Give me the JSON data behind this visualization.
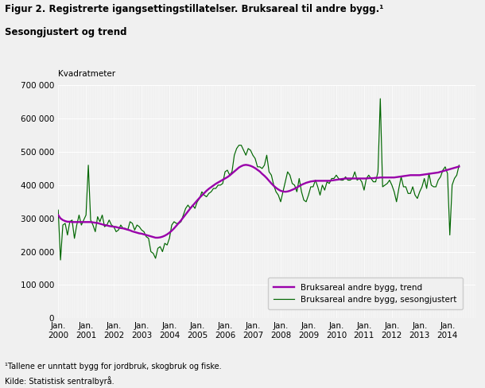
{
  "title_line1": "Figur 2. Registrerte igangsettingstillatelser. Bruksareal til andre bygg.¹",
  "title_line2": "Sesongjustert og trend",
  "ylabel": "Kvadratmeter",
  "footnote1": "¹Tallene er unntatt bygg for jordbruk, skogbruk og fiske.",
  "footnote2": "Kilde: Statistisk sentralbyrå.",
  "legend_trend": "Bruksareal andre bygg, trend",
  "legend_seas": "Bruksareal andre bygg, sesongjustert",
  "color_trend": "#9900aa",
  "color_seas": "#006600",
  "ylim": [
    0,
    700000
  ],
  "yticks": [
    0,
    100000,
    200000,
    300000,
    400000,
    500000,
    600000,
    700000
  ],
  "ytick_labels": [
    "0",
    "100 000",
    "200 000",
    "300 000",
    "400 000",
    "500 000",
    "600 000",
    "700 000"
  ],
  "background_color": "#f0f0f0",
  "plot_background": "#f0f0f0",
  "start_year": 2000,
  "end_year": 2014,
  "seas_data": [
    325000,
    175000,
    280000,
    285000,
    250000,
    290000,
    295000,
    240000,
    280000,
    310000,
    280000,
    295000,
    310000,
    460000,
    295000,
    280000,
    260000,
    305000,
    290000,
    310000,
    275000,
    280000,
    295000,
    280000,
    275000,
    260000,
    265000,
    280000,
    270000,
    270000,
    265000,
    290000,
    285000,
    265000,
    280000,
    275000,
    265000,
    260000,
    245000,
    240000,
    200000,
    195000,
    180000,
    210000,
    215000,
    200000,
    225000,
    220000,
    240000,
    280000,
    290000,
    285000,
    285000,
    290000,
    310000,
    330000,
    340000,
    330000,
    340000,
    330000,
    350000,
    360000,
    380000,
    370000,
    365000,
    375000,
    380000,
    390000,
    390000,
    400000,
    400000,
    405000,
    440000,
    445000,
    430000,
    440000,
    490000,
    510000,
    520000,
    520000,
    505000,
    490000,
    510000,
    505000,
    490000,
    480000,
    455000,
    455000,
    450000,
    460000,
    490000,
    440000,
    430000,
    400000,
    380000,
    370000,
    350000,
    380000,
    410000,
    440000,
    430000,
    405000,
    400000,
    380000,
    420000,
    380000,
    355000,
    350000,
    370000,
    395000,
    395000,
    415000,
    395000,
    370000,
    400000,
    385000,
    410000,
    405000,
    420000,
    420000,
    430000,
    420000,
    415000,
    415000,
    425000,
    415000,
    415000,
    420000,
    440000,
    415000,
    420000,
    410000,
    385000,
    420000,
    430000,
    420000,
    410000,
    410000,
    440000,
    660000,
    395000,
    400000,
    405000,
    415000,
    400000,
    380000,
    350000,
    390000,
    425000,
    395000,
    395000,
    375000,
    375000,
    395000,
    370000,
    360000,
    380000,
    395000,
    420000,
    390000,
    435000,
    400000,
    395000,
    395000,
    415000,
    425000,
    445000,
    455000,
    435000,
    250000,
    400000,
    420000,
    430000,
    460000
  ],
  "trend_data": [
    310000,
    300000,
    295000,
    292000,
    290000,
    290000,
    289000,
    289000,
    289000,
    289000,
    289000,
    289000,
    289000,
    289000,
    289000,
    288000,
    287000,
    286000,
    284000,
    282000,
    280000,
    279000,
    277000,
    276000,
    275000,
    274000,
    272000,
    271000,
    270000,
    268000,
    266000,
    264000,
    261000,
    259000,
    257000,
    255000,
    254000,
    252000,
    250000,
    248000,
    246000,
    244000,
    242000,
    242000,
    243000,
    245000,
    248000,
    252000,
    257000,
    263000,
    270000,
    278000,
    286000,
    294000,
    303000,
    312000,
    321000,
    330000,
    338000,
    346000,
    354000,
    362000,
    369000,
    376000,
    383000,
    389000,
    394000,
    399000,
    404000,
    408000,
    412000,
    416000,
    420000,
    424000,
    429000,
    435000,
    441000,
    447000,
    453000,
    457000,
    460000,
    461000,
    460000,
    458000,
    455000,
    451000,
    446000,
    441000,
    434000,
    428000,
    421000,
    413000,
    405000,
    398000,
    392000,
    387000,
    383000,
    381000,
    380000,
    381000,
    383000,
    386000,
    389000,
    393000,
    397000,
    401000,
    404000,
    407000,
    409000,
    411000,
    412000,
    413000,
    413000,
    413000,
    413000,
    413000,
    413000,
    413000,
    414000,
    415000,
    416000,
    417000,
    418000,
    419000,
    420000,
    420000,
    420000,
    420000,
    420000,
    420000,
    420000,
    420000,
    420000,
    420000,
    421000,
    421000,
    421000,
    422000,
    422000,
    423000,
    423000,
    423000,
    423000,
    423000,
    423000,
    423000,
    424000,
    425000,
    426000,
    427000,
    428000,
    429000,
    430000,
    430000,
    430000,
    430000,
    430000,
    431000,
    432000,
    433000,
    434000,
    435000,
    436000,
    437000,
    438000,
    440000,
    442000,
    444000,
    446000,
    448000,
    450000,
    452000,
    454000,
    456000
  ]
}
